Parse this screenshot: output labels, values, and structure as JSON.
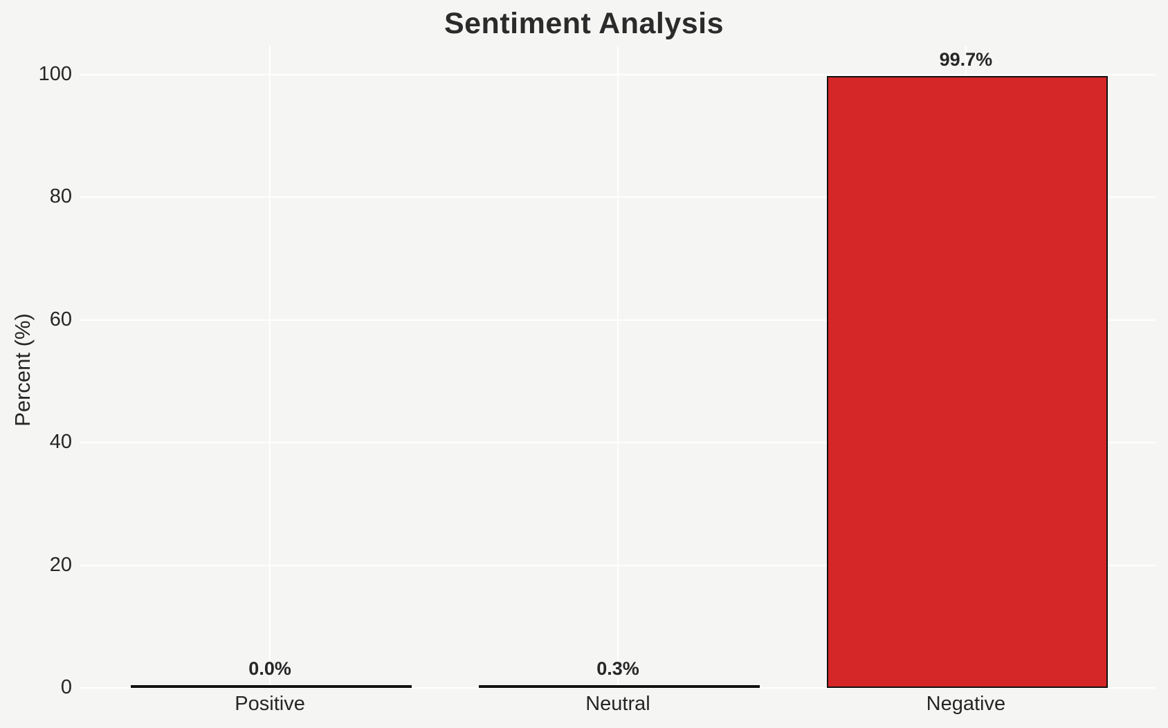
{
  "figure": {
    "background_color": "#f5f5f4",
    "gridline_color": "#ffffff"
  },
  "chart_data": {
    "type": "bar",
    "title": "Sentiment Analysis",
    "xlabel": "",
    "ylabel": "Percent (%)",
    "categories": [
      "Positive",
      "Neutral",
      "Negative"
    ],
    "values": [
      0.0,
      0.3,
      99.7
    ],
    "bar_value_labels": [
      "0.0%",
      "0.3%",
      "99.7%"
    ],
    "bar_fill_color": "#d62728",
    "bar_edge_color": "#111111",
    "yticks": [
      0,
      20,
      40,
      60,
      80,
      100
    ],
    "ytick_labels": [
      "0",
      "20",
      "40",
      "60",
      "80",
      "100"
    ],
    "ylim": [
      0,
      104.7
    ],
    "grid": "on",
    "legend_position": "none"
  }
}
